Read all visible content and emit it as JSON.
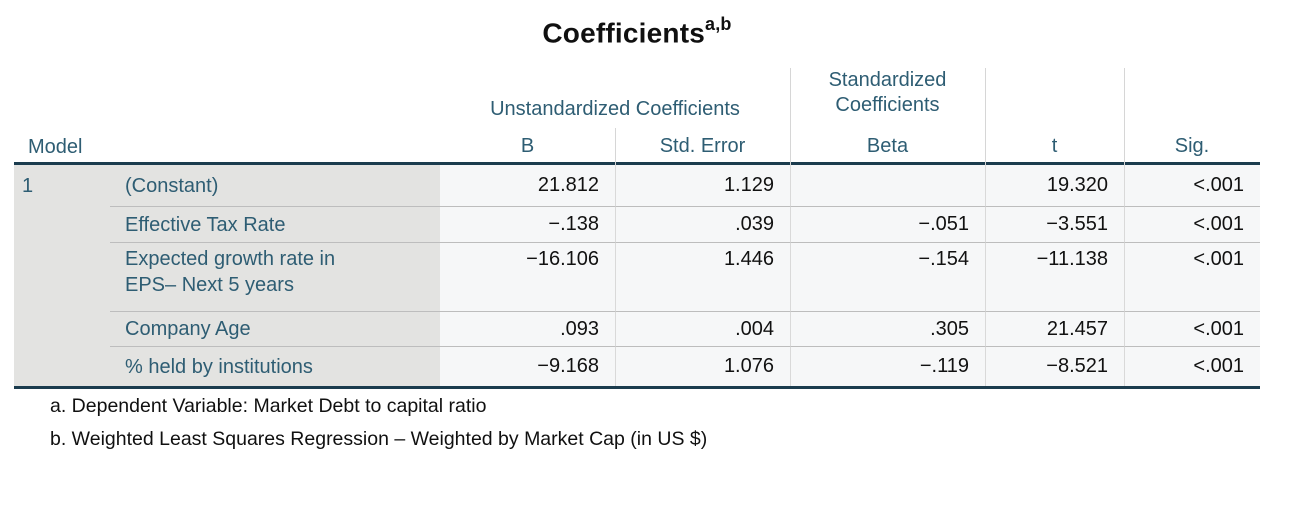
{
  "title": {
    "text": "Coefficients",
    "superscript": "a,b"
  },
  "colors": {
    "header_text": "#2e5d73",
    "dark_border": "#1b3c4e",
    "stub_background": "#e3e3e1",
    "data_background": "#f6f7f8"
  },
  "table": {
    "model_header": "Model",
    "column_groups": {
      "unstandardized": "Unstandardized Coefficients",
      "standardized": "Standardized Coefficients"
    },
    "columns": {
      "b": "B",
      "std_error": "Std. Error",
      "beta": "Beta",
      "t": "t",
      "sig": "Sig."
    },
    "rows": [
      {
        "model": "1",
        "label": "(Constant)",
        "b": "21.812",
        "std_error": "1.129",
        "beta": "",
        "t": "19.320",
        "sig": "<.001"
      },
      {
        "model": "",
        "label": "Effective Tax Rate",
        "b": "−.138",
        "std_error": ".039",
        "beta": "−.051",
        "t": "−3.551",
        "sig": "<.001"
      },
      {
        "model": "",
        "label": "Expected growth rate in EPS– Next 5 years",
        "b": "−16.106",
        "std_error": "1.446",
        "beta": "−.154",
        "t": "−11.138",
        "sig": "<.001"
      },
      {
        "model": "",
        "label": "Company Age",
        "b": ".093",
        "std_error": ".004",
        "beta": ".305",
        "t": "21.457",
        "sig": "<.001"
      },
      {
        "model": "",
        "label": "% held by institutions",
        "b": "−9.168",
        "std_error": "1.076",
        "beta": "−.119",
        "t": "−8.521",
        "sig": "<.001"
      }
    ]
  },
  "footnotes": [
    "a. Dependent Variable: Market Debt to capital ratio",
    "b. Weighted Least Squares Regression – Weighted by Market Cap (in US $)"
  ]
}
